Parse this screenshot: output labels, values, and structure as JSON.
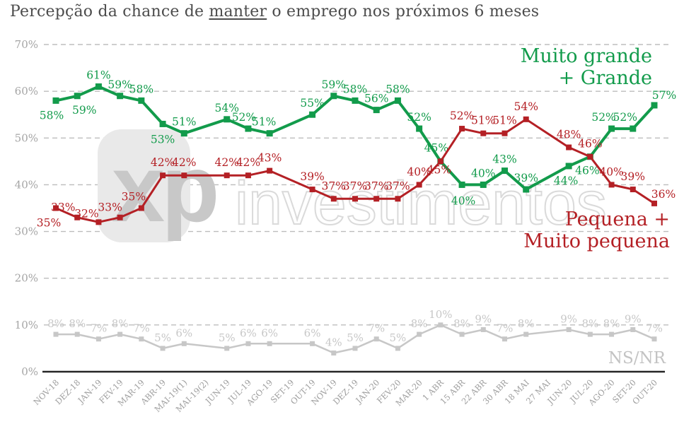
{
  "title": {
    "prefix": "Percepção da chance de ",
    "underlined": "manter",
    "suffix": " o emprego nos próximos 6 meses"
  },
  "watermark": {
    "logo": "xp",
    "text": "investimentos"
  },
  "legends": {
    "green": {
      "line1": "Muito grande",
      "line2": "+ Grande"
    },
    "red": {
      "line1": "Pequena +",
      "line2": "Muito pequena"
    },
    "gray": {
      "label": "NS/NR"
    }
  },
  "colors": {
    "green": "#129b4b",
    "red": "#b42025",
    "gray": "#c7c7c7",
    "grid": "#bdbdbd",
    "axis_text": "#a5a5a5",
    "title_text": "#4c4c4c"
  },
  "chart_data": {
    "type": "line",
    "title": "Percepção da chance de manter o emprego nos próximos 6 meses",
    "xlabel": "",
    "ylabel": "",
    "ylim": [
      0,
      70
    ],
    "y_ticks": [
      0,
      10,
      20,
      30,
      40,
      50,
      60,
      70
    ],
    "y_tick_suffix": "%",
    "grid": true,
    "legend_position": "inline",
    "categories": [
      "NOV-18",
      "DEZ-18",
      "JAN-19",
      "FEV-19",
      "MAR-19",
      "ABR-19",
      "MAI-19(1)",
      "MAI-19(2)",
      "JUN-19",
      "JUL-19",
      "AGO-19",
      "SET-19",
      "OUT-19",
      "NOV-19",
      "DEZ-19",
      "JAN-20",
      "FEV-20",
      "MAR-20",
      "1 ABR",
      "15 ABR",
      "22 ABR",
      "30 ABR",
      "18 MAI",
      "27 MAI",
      "JUN-20",
      "JUL-20",
      "AGO-20",
      "SET-20",
      "OUT-20"
    ],
    "series": [
      {
        "name": "Muito grande + Grande",
        "color": "#129b4b",
        "values": [
          58,
          59,
          61,
          59,
          58,
          53,
          51,
          null,
          54,
          52,
          51,
          null,
          55,
          59,
          58,
          56,
          58,
          52,
          45,
          40,
          40,
          43,
          39,
          null,
          44,
          46,
          52,
          52,
          57
        ]
      },
      {
        "name": "Pequena + Muito pequena",
        "color": "#b42025",
        "values": [
          35,
          33,
          32,
          33,
          35,
          42,
          42,
          null,
          42,
          42,
          43,
          null,
          39,
          37,
          37,
          37,
          37,
          40,
          45,
          52,
          51,
          51,
          54,
          null,
          48,
          46,
          40,
          39,
          36
        ]
      },
      {
        "name": "NS/NR",
        "color": "#c7c7c7",
        "values": [
          8,
          8,
          7,
          8,
          7,
          5,
          6,
          null,
          5,
          6,
          6,
          null,
          6,
          4,
          5,
          7,
          5,
          8,
          10,
          8,
          9,
          7,
          8,
          null,
          9,
          8,
          8,
          9,
          7
        ]
      }
    ]
  }
}
